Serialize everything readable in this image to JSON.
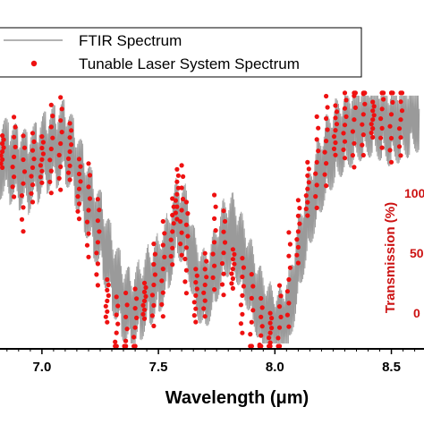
{
  "colors": {
    "ftir": "#9a9a9a",
    "laser": "#ee1111",
    "right_axis": "#cc1111",
    "axis": "#000000"
  },
  "chart_data": {
    "type": "line",
    "title": "",
    "xlabel": "Wavelength (μm)",
    "x_ticks": [
      7.0,
      7.5,
      8.0,
      8.5
    ],
    "x_tick_labels": [
      "7.0",
      "7.5",
      "8.0",
      "8.5"
    ],
    "xlim": [
      6.82,
      8.64
    ],
    "ylim": [
      0,
      1.0
    ],
    "right_axis_label": "Transmission (%)",
    "right_tick_labels": [
      "100",
      "50",
      "0"
    ],
    "legend_position": "top-left",
    "legend": [
      "FTIR Spectrum",
      "Tunable Laser System Spectrum"
    ],
    "series": [
      {
        "name": "FTIR Spectrum",
        "style": "line",
        "x": [
          6.82,
          6.86,
          6.9,
          6.94,
          6.98,
          7.02,
          7.06,
          7.1,
          7.14,
          7.18,
          7.22,
          7.26,
          7.3,
          7.34,
          7.38,
          7.42,
          7.46,
          7.5,
          7.54,
          7.58,
          7.62,
          7.66,
          7.7,
          7.74,
          7.78,
          7.82,
          7.86,
          7.9,
          7.94,
          7.98,
          8.02,
          8.06,
          8.1,
          8.14,
          8.18,
          8.22,
          8.26,
          8.3,
          8.34,
          8.38,
          8.42,
          8.46,
          8.5,
          8.54,
          8.58,
          8.62
        ],
        "y": [
          0.72,
          0.7,
          0.68,
          0.66,
          0.7,
          0.74,
          0.76,
          0.78,
          0.7,
          0.6,
          0.5,
          0.42,
          0.3,
          0.2,
          0.14,
          0.18,
          0.24,
          0.28,
          0.36,
          0.5,
          0.46,
          0.28,
          0.22,
          0.3,
          0.42,
          0.44,
          0.36,
          0.26,
          0.16,
          0.1,
          0.08,
          0.14,
          0.34,
          0.5,
          0.62,
          0.72,
          0.78,
          0.82,
          0.85,
          0.87,
          0.88,
          0.86,
          0.84,
          0.86,
          0.88,
          0.9
        ]
      },
      {
        "name": "Tunable Laser System Spectrum",
        "style": "markers",
        "x": [
          6.83,
          6.88,
          6.92,
          6.96,
          7.0,
          7.04,
          7.08,
          7.12,
          7.16,
          7.2,
          7.24,
          7.28,
          7.32,
          7.36,
          7.4,
          7.44,
          7.48,
          7.52,
          7.56,
          7.58,
          7.6,
          7.62,
          7.66,
          7.7,
          7.74,
          7.78,
          7.82,
          7.86,
          7.9,
          7.94,
          7.98,
          8.02,
          8.06,
          8.1,
          8.14,
          8.18,
          8.22,
          8.26,
          8.3,
          8.34,
          8.38,
          8.42,
          8.46,
          8.5,
          8.54
        ],
        "y": [
          0.74,
          0.72,
          0.62,
          0.68,
          0.71,
          0.75,
          0.77,
          0.74,
          0.6,
          0.52,
          0.4,
          0.18,
          0.06,
          0.03,
          0.08,
          0.18,
          0.24,
          0.3,
          0.44,
          0.58,
          0.52,
          0.38,
          0.2,
          0.24,
          0.4,
          0.36,
          0.3,
          0.2,
          0.1,
          0.05,
          0.06,
          0.08,
          0.26,
          0.44,
          0.6,
          0.7,
          0.78,
          0.82,
          0.84,
          0.86,
          0.88,
          0.86,
          0.9,
          0.88,
          0.86
        ]
      }
    ]
  }
}
